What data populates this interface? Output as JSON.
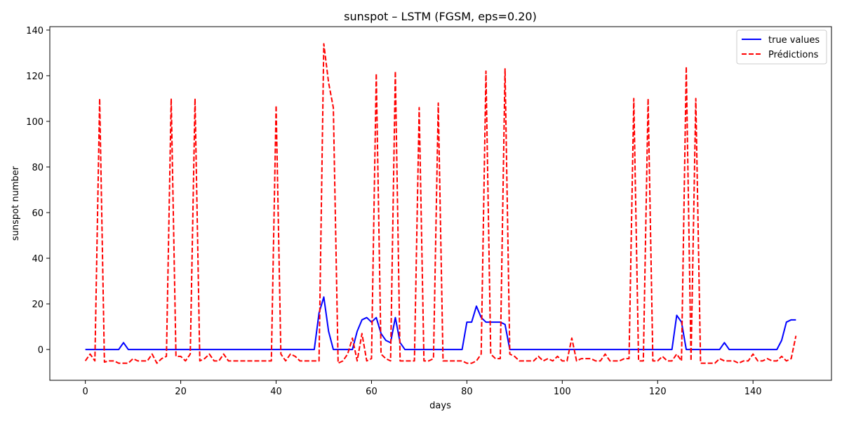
{
  "chart_data": {
    "type": "line",
    "title": "sunspot – LSTM (FGSM, eps=0.20)",
    "xlabel": "days",
    "ylabel": "sunspot number",
    "xlim": [
      -7.45,
      156.45
    ],
    "ylim": [
      -13.5,
      141.5
    ],
    "xticks": [
      0,
      20,
      40,
      60,
      80,
      100,
      120,
      140
    ],
    "yticks": [
      0,
      20,
      40,
      60,
      80,
      100,
      120,
      140
    ],
    "grid": false,
    "legend_position": "top-right",
    "series": [
      {
        "name": "true values",
        "color": "#0000ff",
        "linestyle": "solid",
        "x": [
          0,
          1,
          2,
          3,
          4,
          5,
          6,
          7,
          8,
          9,
          10,
          11,
          12,
          13,
          14,
          15,
          16,
          17,
          18,
          19,
          20,
          21,
          22,
          23,
          24,
          25,
          26,
          27,
          28,
          29,
          30,
          31,
          32,
          33,
          34,
          35,
          36,
          37,
          38,
          39,
          40,
          41,
          42,
          43,
          44,
          45,
          46,
          47,
          48,
          49,
          50,
          51,
          52,
          53,
          54,
          55,
          56,
          57,
          58,
          59,
          60,
          61,
          62,
          63,
          64,
          65,
          66,
          67,
          68,
          69,
          70,
          71,
          72,
          73,
          74,
          75,
          76,
          77,
          78,
          79,
          80,
          81,
          82,
          83,
          84,
          85,
          86,
          87,
          88,
          89,
          90,
          91,
          92,
          93,
          94,
          95,
          96,
          97,
          98,
          99,
          100,
          101,
          102,
          103,
          104,
          105,
          106,
          107,
          108,
          109,
          110,
          111,
          112,
          113,
          114,
          115,
          116,
          117,
          118,
          119,
          120,
          121,
          122,
          123,
          124,
          125,
          126,
          127,
          128,
          129,
          130,
          131,
          132,
          133,
          134,
          135,
          136,
          137,
          138,
          139,
          140,
          141,
          142,
          143,
          144,
          145,
          146,
          147,
          148,
          149
        ],
        "y": [
          0,
          0,
          0,
          0,
          0,
          0,
          0,
          0,
          3,
          0,
          0,
          0,
          0,
          0,
          0,
          0,
          0,
          0,
          0,
          0,
          0,
          0,
          0,
          0,
          0,
          0,
          0,
          0,
          0,
          0,
          0,
          0,
          0,
          0,
          0,
          0,
          0,
          0,
          0,
          0,
          0,
          0,
          0,
          0,
          0,
          0,
          0,
          0,
          0,
          16,
          23,
          8,
          0,
          0,
          0,
          0,
          0,
          8,
          13,
          14,
          12,
          14,
          7,
          4,
          3,
          14,
          3,
          0,
          0,
          0,
          0,
          0,
          0,
          0,
          0,
          0,
          0,
          0,
          0,
          0,
          12,
          12,
          19,
          14,
          12,
          12,
          12,
          12,
          11,
          0,
          0,
          0,
          0,
          0,
          0,
          0,
          0,
          0,
          0,
          0,
          0,
          0,
          0,
          0,
          0,
          0,
          0,
          0,
          0,
          0,
          0,
          0,
          0,
          0,
          0,
          0,
          0,
          0,
          0,
          0,
          0,
          0,
          0,
          0,
          15,
          12,
          0,
          0,
          0,
          0,
          0,
          0,
          0,
          0,
          3,
          0,
          0,
          0,
          0,
          0,
          0,
          0,
          0,
          0,
          0,
          0,
          4,
          12,
          13,
          13
        ]
      },
      {
        "name": "Prédictions",
        "color": "#ff0000",
        "linestyle": "dashed",
        "x": [
          0,
          1,
          2,
          3,
          4,
          5,
          6,
          7,
          8,
          9,
          10,
          11,
          12,
          13,
          14,
          15,
          16,
          17,
          18,
          19,
          20,
          21,
          22,
          23,
          24,
          25,
          26,
          27,
          28,
          29,
          30,
          31,
          32,
          33,
          34,
          35,
          36,
          37,
          38,
          39,
          40,
          41,
          42,
          43,
          44,
          45,
          46,
          47,
          48,
          49,
          50,
          51,
          52,
          53,
          54,
          55,
          56,
          57,
          58,
          59,
          60,
          61,
          62,
          63,
          64,
          65,
          66,
          67,
          68,
          69,
          70,
          71,
          72,
          73,
          74,
          75,
          76,
          77,
          78,
          79,
          80,
          81,
          82,
          83,
          84,
          85,
          86,
          87,
          88,
          89,
          90,
          91,
          92,
          93,
          94,
          95,
          96,
          97,
          98,
          99,
          100,
          101,
          102,
          103,
          104,
          105,
          106,
          107,
          108,
          109,
          110,
          111,
          112,
          113,
          114,
          115,
          116,
          117,
          118,
          119,
          120,
          121,
          122,
          123,
          124,
          125,
          126,
          127,
          128,
          129,
          130,
          131,
          132,
          133,
          134,
          135,
          136,
          137,
          138,
          139,
          140,
          141,
          142,
          143,
          144,
          145,
          146,
          147,
          148,
          149
        ],
        "y": [
          -5,
          -2,
          -5,
          110,
          -5.5,
          -5,
          -5,
          -6,
          -6,
          -6,
          -4,
          -5,
          -5,
          -5,
          -2,
          -6,
          -4,
          -3,
          110,
          -3,
          -3,
          -5,
          -2,
          110,
          -5,
          -4,
          -2,
          -5,
          -5,
          -2,
          -5,
          -5,
          -5,
          -5,
          -5,
          -5,
          -5,
          -5,
          -5,
          -5,
          107,
          -2,
          -5,
          -2,
          -3,
          -5,
          -5,
          -5,
          -5,
          -5,
          134,
          117,
          106,
          -6,
          -5,
          -2,
          5,
          -5,
          7,
          -5,
          -4,
          121,
          -2,
          -4,
          -5,
          122,
          -5,
          -5,
          -5,
          -5,
          106,
          -5,
          -5,
          -4,
          108,
          -5,
          -5,
          -5,
          -5,
          -5,
          -6,
          -6,
          -5,
          -2,
          122,
          -2,
          -4,
          -4,
          123,
          -2,
          -3,
          -5,
          -5,
          -5,
          -5,
          -3,
          -5,
          -4,
          -5,
          -3,
          -5,
          -5,
          5,
          -5,
          -4,
          -4,
          -4,
          -5,
          -5,
          -2,
          -5,
          -5,
          -5,
          -4,
          -4,
          110,
          -5,
          -5,
          110,
          -5,
          -5,
          -3,
          -5,
          -5,
          -2,
          -5,
          124,
          -5,
          110,
          -6,
          -6,
          -6,
          -6,
          -4,
          -5,
          -5,
          -5,
          -6,
          -5,
          -5,
          -2,
          -5,
          -5,
          -4,
          -5,
          -5,
          -3,
          -5,
          -4,
          6
        ]
      }
    ]
  }
}
